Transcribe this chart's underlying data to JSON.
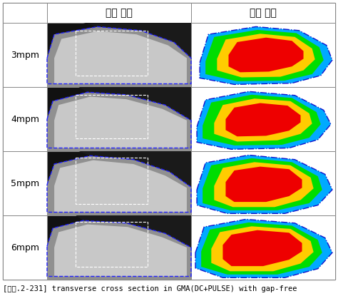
{
  "title": "[그림.2-231] transverse cross section in GMA(DC+PULSE) with gap-free",
  "col_headers": [
    "실험 결과",
    "해석 결과"
  ],
  "row_labels": [
    "3mpm",
    "4mpm",
    "5mpm",
    "6mpm"
  ],
  "bg_color": "#ffffff",
  "border_color": "#888888",
  "text_color": "#000000",
  "header_fontsize": 10,
  "label_fontsize": 9,
  "caption_fontsize": 7.5
}
